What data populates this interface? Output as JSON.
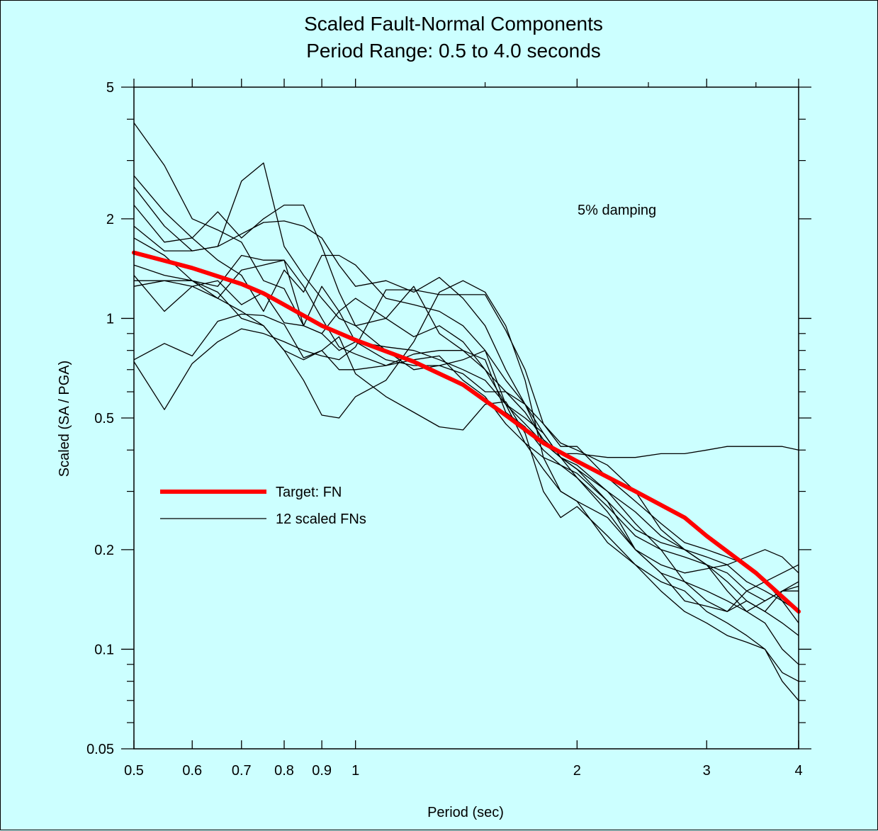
{
  "chart_data": {
    "type": "line",
    "title": "Scaled Fault-Normal Components",
    "subtitle": "Period Range: 0.5 to 4.0 seconds",
    "xlabel": "Period (sec)",
    "ylabel": "Scaled (SA / PGA)",
    "annotation": "5% damping",
    "x_scale": "log",
    "y_scale": "log",
    "xlim": [
      0.5,
      4
    ],
    "ylim": [
      0.05,
      5
    ],
    "x_ticks": [
      0.5,
      0.6,
      0.7,
      0.8,
      0.9,
      1,
      2,
      3,
      4
    ],
    "x_tick_labels": [
      "0.5",
      "0.6",
      "0.7",
      "0.8",
      "0.9",
      "1",
      "2",
      "3",
      "4"
    ],
    "y_ticks": [
      0.05,
      0.1,
      0.2,
      0.5,
      1,
      2,
      5
    ],
    "y_tick_labels": [
      "0.05",
      "0.1",
      "0.2",
      "0.5",
      "1",
      "2",
      "5"
    ],
    "grid": false,
    "legend": {
      "placement": "middle-left",
      "entries": [
        {
          "label": "Target: FN",
          "color": "#ff0000"
        },
        {
          "label": "12 scaled FNs",
          "color": "#000000"
        }
      ]
    },
    "target": {
      "name": "Target: FN",
      "color": "#ff0000",
      "x": [
        0.5,
        0.6,
        0.7,
        0.75,
        0.8,
        0.9,
        1,
        1.2,
        1.4,
        1.6,
        1.8,
        2,
        2.4,
        2.8,
        3,
        3.5,
        4
      ],
      "y": [
        1.58,
        1.42,
        1.27,
        1.19,
        1.1,
        0.95,
        0.86,
        0.74,
        0.63,
        0.51,
        0.42,
        0.37,
        0.3,
        0.25,
        0.22,
        0.17,
        0.13
      ]
    },
    "series_x": [
      0.5,
      0.55,
      0.6,
      0.65,
      0.7,
      0.75,
      0.8,
      0.85,
      0.9,
      0.95,
      1,
      1.1,
      1.2,
      1.3,
      1.4,
      1.5,
      1.6,
      1.7,
      1.8,
      1.9,
      2,
      2.2,
      2.4,
      2.6,
      2.8,
      3,
      3.2,
      3.4,
      3.6,
      3.8,
      4
    ],
    "series": [
      {
        "name": "",
        "color": "#000000",
        "y": [
          3.9,
          2.9,
          2.0,
          1.85,
          1.7,
          1.3,
          1.23,
          0.95,
          1.25,
          1.05,
          1.15,
          1.0,
          1.25,
          0.9,
          0.8,
          0.7,
          0.6,
          0.55,
          0.48,
          0.42,
          0.4,
          0.36,
          0.3,
          0.23,
          0.2,
          0.18,
          0.15,
          0.13,
          0.14,
          0.15,
          0.16
        ]
      },
      {
        "name": "",
        "color": "#000000",
        "y": [
          2.7,
          2.1,
          1.75,
          1.5,
          1.35,
          1.05,
          1.4,
          1.2,
          1.55,
          1.55,
          1.45,
          1.15,
          1.1,
          1.05,
          0.95,
          0.8,
          0.65,
          0.55,
          0.45,
          0.38,
          0.35,
          0.3,
          0.24,
          0.2,
          0.16,
          0.14,
          0.13,
          0.15,
          0.16,
          0.17,
          0.18
        ]
      },
      {
        "name": "",
        "color": "#000000",
        "y": [
          2.5,
          1.9,
          1.6,
          1.65,
          2.6,
          2.95,
          1.65,
          1.35,
          1.15,
          1.0,
          0.95,
          0.8,
          0.7,
          0.72,
          0.75,
          0.8,
          0.55,
          0.42,
          0.35,
          0.3,
          0.28,
          0.25,
          0.2,
          0.17,
          0.14,
          0.135,
          0.13,
          0.14,
          0.13,
          0.12,
          0.11
        ]
      },
      {
        "name": "",
        "color": "#000000",
        "y": [
          2.2,
          1.7,
          1.75,
          2.1,
          1.75,
          2.0,
          2.2,
          2.2,
          1.65,
          1.2,
          0.95,
          1.0,
          0.88,
          0.95,
          0.85,
          0.7,
          0.55,
          0.5,
          0.45,
          0.38,
          0.33,
          0.27,
          0.22,
          0.2,
          0.19,
          0.18,
          0.17,
          0.15,
          0.14,
          0.15,
          0.155
        ]
      },
      {
        "name": "",
        "color": "#000000",
        "y": [
          1.9,
          1.6,
          1.6,
          1.65,
          1.8,
          1.95,
          1.97,
          1.9,
          1.75,
          1.45,
          1.25,
          1.3,
          1.2,
          1.33,
          1.15,
          0.95,
          0.7,
          0.55,
          0.42,
          0.38,
          0.36,
          0.3,
          0.26,
          0.22,
          0.2,
          0.19,
          0.18,
          0.16,
          0.15,
          0.14,
          0.13
        ]
      },
      {
        "name": "",
        "color": "#000000",
        "y": [
          1.75,
          1.55,
          1.3,
          1.15,
          1.4,
          1.45,
          1.5,
          0.95,
          0.9,
          1.05,
          0.85,
          0.75,
          0.72,
          0.72,
          0.68,
          0.6,
          0.6,
          0.52,
          0.43,
          0.39,
          0.39,
          0.38,
          0.38,
          0.39,
          0.39,
          0.4,
          0.41,
          0.41,
          0.41,
          0.41,
          0.4
        ]
      },
      {
        "name": "",
        "color": "#000000",
        "y": [
          1.35,
          1.05,
          1.25,
          1.3,
          1.1,
          1.2,
          0.97,
          0.95,
          0.9,
          0.8,
          0.85,
          0.82,
          0.8,
          0.75,
          0.7,
          0.65,
          0.55,
          0.48,
          0.42,
          0.38,
          0.35,
          0.28,
          0.2,
          0.18,
          0.17,
          0.175,
          0.18,
          0.19,
          0.2,
          0.19,
          0.17
        ]
      },
      {
        "name": "",
        "color": "#000000",
        "y": [
          1.3,
          1.3,
          1.25,
          1.15,
          1.05,
          0.95,
          0.8,
          0.75,
          0.8,
          0.7,
          0.7,
          0.72,
          0.78,
          0.8,
          0.8,
          0.75,
          0.52,
          0.47,
          0.4,
          0.36,
          0.34,
          0.28,
          0.23,
          0.21,
          0.2,
          0.18,
          0.16,
          0.14,
          0.13,
          0.15,
          0.15
        ]
      },
      {
        "name": "",
        "color": "#000000",
        "y": [
          1.25,
          1.3,
          1.3,
          1.25,
          1.55,
          1.5,
          1.5,
          1.25,
          1.0,
          0.82,
          0.78,
          0.72,
          0.75,
          0.77,
          0.65,
          0.58,
          0.48,
          0.42,
          0.38,
          0.36,
          0.33,
          0.26,
          0.2,
          0.17,
          0.16,
          0.15,
          0.14,
          0.13,
          0.12,
          0.1,
          0.09
        ]
      },
      {
        "name": "",
        "color": "#000000",
        "y": [
          1.45,
          1.35,
          1.3,
          1.2,
          1.0,
          0.95,
          0.8,
          0.65,
          0.51,
          0.5,
          0.58,
          0.65,
          0.85,
          1.2,
          1.3,
          1.2,
          0.95,
          0.65,
          0.38,
          0.3,
          0.28,
          0.21,
          0.18,
          0.16,
          0.15,
          0.13,
          0.12,
          0.11,
          0.1,
          0.085,
          0.08
        ]
      },
      {
        "name": "",
        "color": "#000000",
        "y": [
          0.75,
          0.84,
          0.77,
          0.98,
          1.03,
          1.02,
          0.96,
          0.76,
          0.8,
          0.88,
          0.68,
          0.58,
          0.52,
          0.47,
          0.46,
          0.55,
          0.56,
          0.45,
          0.3,
          0.25,
          0.27,
          0.22,
          0.18,
          0.15,
          0.13,
          0.12,
          0.11,
          0.105,
          0.1,
          0.08,
          0.07
        ]
      },
      {
        "name": "",
        "color": "#000000",
        "y": [
          0.74,
          0.53,
          0.73,
          0.85,
          0.93,
          0.9,
          0.85,
          0.8,
          0.77,
          0.75,
          0.82,
          1.22,
          1.22,
          1.18,
          1.18,
          1.18,
          0.92,
          0.7,
          0.48,
          0.41,
          0.41,
          0.33,
          0.28,
          0.24,
          0.21,
          0.2,
          0.19,
          0.18,
          0.16,
          0.14,
          0.12
        ]
      }
    ]
  }
}
